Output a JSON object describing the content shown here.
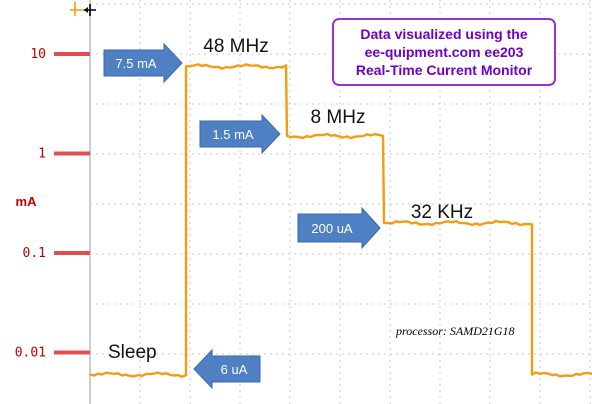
{
  "callout": {
    "line1": "Data visualized using the",
    "line2": "ee-quipment.com ee203",
    "line3": "Real-Time Current Monitor"
  },
  "annotations": {
    "processor": "processor: SAMD21G18"
  },
  "colors": {
    "trace": "#f39c12",
    "arrow_fill": "#4f80c4",
    "axis_marker": "#e05050",
    "tick_text": "#c00000",
    "grid": "#c8c8c8",
    "callout_border": "#9a32cd",
    "callout_text": "#6f00c8"
  },
  "chart_data": {
    "type": "line",
    "ylabel": "mA",
    "yscale": "log",
    "ylim": [
      0.005,
      20
    ],
    "yticks": [
      {
        "value": 10,
        "label": "10"
      },
      {
        "value": 1,
        "label": "1"
      },
      {
        "value": 0.1,
        "label": "0.1"
      },
      {
        "value": 0.01,
        "label": "0.01"
      }
    ],
    "grid": true,
    "segments": [
      {
        "state": "Sleep",
        "current_label": "6 uA",
        "value": 0.006
      },
      {
        "state": "48 MHz",
        "current_label": "7.5 mA",
        "value": 7.5
      },
      {
        "state": "8 MHz",
        "current_label": "1.5 mA",
        "value": 1.5
      },
      {
        "state": "32 KHz",
        "current_label": "200 uA",
        "value": 0.2
      },
      {
        "state": "",
        "current_label": "",
        "value": 0.006
      }
    ]
  }
}
